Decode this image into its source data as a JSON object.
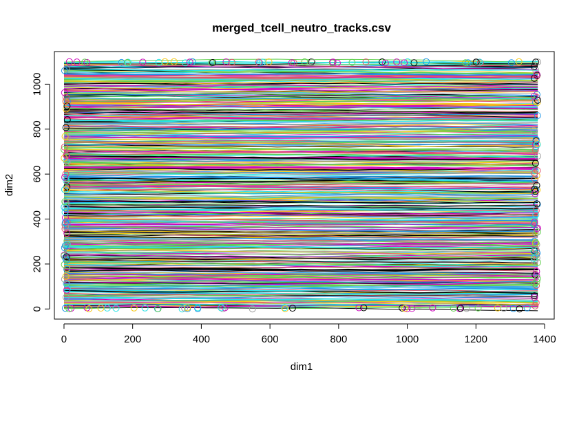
{
  "chart_data": {
    "type": "line",
    "title": "merged_tcell_neutro_tracks.csv",
    "xlabel": "dim1",
    "ylabel": "dim2",
    "xlim": [
      -28,
      1428
    ],
    "ylim": [
      -45,
      1145
    ],
    "x_ticks": [
      0,
      200,
      400,
      600,
      800,
      1000,
      1200,
      1400
    ],
    "y_ticks": [
      0,
      200,
      400,
      600,
      800,
      1000
    ],
    "data_extent": {
      "x": [
        0,
        1380
      ],
      "y": [
        0,
        1100
      ]
    },
    "grid": false,
    "legend": "none",
    "description_note": "",
    "series_colors": [
      "#000000",
      "#DF536B",
      "#61D04F",
      "#2297E6",
      "#28E2E5",
      "#CD0BBC",
      "#F5C710",
      "#9E9E9E"
    ]
  }
}
